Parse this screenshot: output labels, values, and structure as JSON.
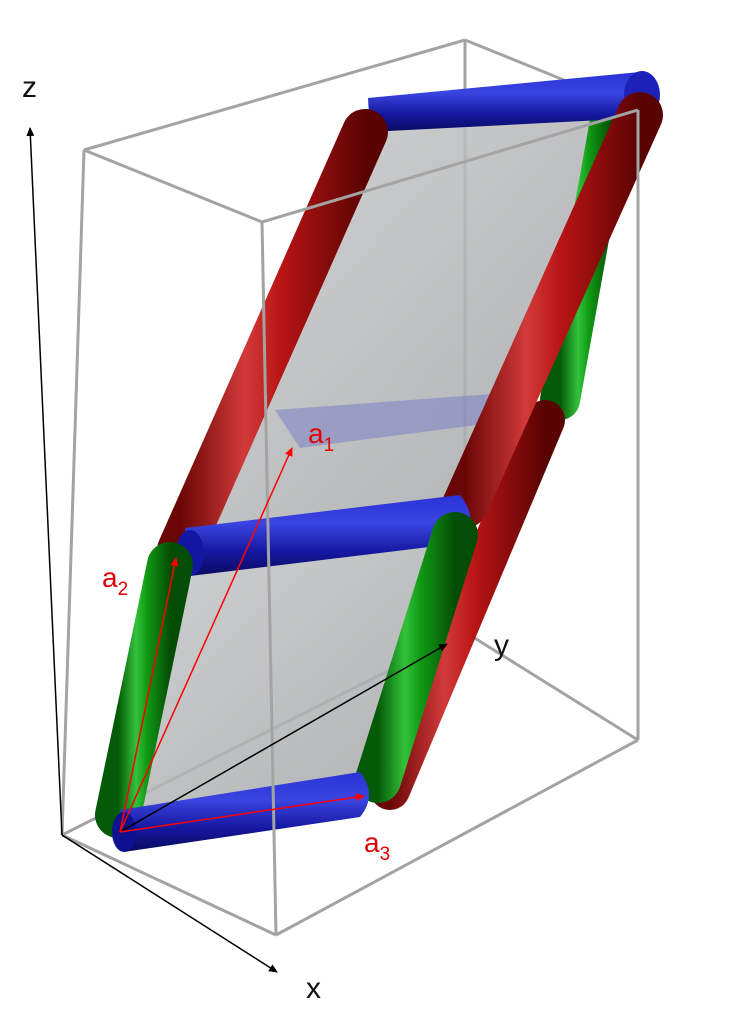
{
  "axes": {
    "x_label": "x",
    "y_label": "y",
    "z_label": "z"
  },
  "vectors": [
    {
      "letter": "a",
      "index": "1"
    },
    {
      "letter": "a",
      "index": "2"
    },
    {
      "letter": "a",
      "index": "3"
    }
  ],
  "colors": {
    "rod_a1": "#c01515",
    "rod_a2": "#0f9a12",
    "rod_a3": "#1c1fb0",
    "plane": "#a9abac",
    "box_edge": "#9a9a9a",
    "axis": "#000000",
    "vector": "#ff0000"
  }
}
